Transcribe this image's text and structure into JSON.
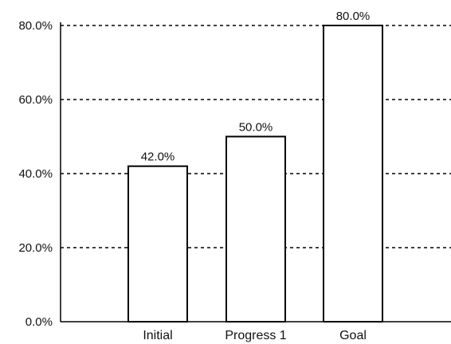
{
  "chart_data": {
    "type": "bar",
    "categories": [
      "Initial",
      "Progress 1",
      "Goal"
    ],
    "values": [
      42.0,
      50.0,
      80.0
    ],
    "value_labels": [
      "42.0%",
      "50.0%",
      "80.0%"
    ],
    "yticks": [
      0,
      20,
      40,
      60,
      80
    ],
    "ytick_labels": [
      "0.0%",
      "20.0%",
      "40.0%",
      "60.0%",
      "80.0%"
    ],
    "ylim": [
      0,
      80
    ],
    "grid": true,
    "title": "",
    "xlabel": "",
    "ylabel": ""
  }
}
